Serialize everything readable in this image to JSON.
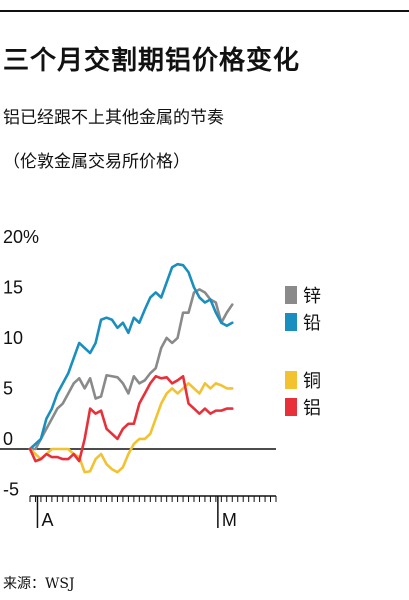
{
  "title": "三个月交割期铝价格变化",
  "subtitle": "铝已经跟不上其他金属的节奏",
  "note": "（伦敦金属交易所价格）",
  "source": "来源：WSJ",
  "chart_data": {
    "type": "line",
    "title": "三个月交割期铝价格变化",
    "xlabel": "",
    "ylabel": "",
    "y_tick_labels": [
      "20%",
      "15",
      "10",
      "5",
      "0",
      "-5"
    ],
    "y_ticks": [
      20,
      15,
      10,
      5,
      0,
      -5
    ],
    "ylim": [
      -6.5,
      21
    ],
    "x_tick_labels": [
      "A",
      "M"
    ],
    "x_tick_positions": [
      1,
      34
    ],
    "x_count": 46,
    "grid": false,
    "legend_position": "right",
    "series": [
      {
        "name": "锌",
        "color": "#8a8a8a",
        "values": [
          0,
          0,
          1,
          2,
          3,
          4,
          4.5,
          5.5,
          6.5,
          7,
          6,
          7,
          5,
          5.2,
          7.3,
          7.2,
          7.1,
          6.5,
          5.5,
          7.2,
          6.5,
          6.8,
          7.5,
          8,
          10,
          11,
          10.5,
          11,
          13.5,
          13.5,
          15.5,
          15.8,
          15.5,
          14.8,
          14.5,
          12.5,
          13.5,
          14.3
        ]
      },
      {
        "name": "铅",
        "color": "#1a8fbf",
        "values": [
          0,
          0.5,
          1,
          3,
          4,
          5.5,
          6.5,
          7.5,
          9,
          10.5,
          10,
          9.5,
          10.5,
          12.8,
          13,
          12.8,
          12,
          12.5,
          11.5,
          13,
          12.5,
          13.8,
          15,
          15.5,
          15,
          16.5,
          18,
          18.3,
          18.2,
          17.5,
          16,
          15,
          14.5,
          14.8,
          13.5,
          12.5,
          12.2,
          12.5
        ]
      },
      {
        "name": "铜",
        "color": "#f2c230",
        "values": [
          0,
          -0.5,
          -1,
          -0.5,
          0,
          0,
          0,
          0,
          -0.5,
          -0.8,
          -2.3,
          -2.2,
          -1,
          -0.5,
          -1.5,
          -2,
          -2.3,
          -1.8,
          -0.5,
          0.5,
          1,
          1,
          1.5,
          3,
          4.5,
          5.5,
          6,
          5.5,
          6,
          6.5,
          6,
          5.5,
          6.5,
          6,
          6.5,
          6.3,
          6,
          6
        ]
      },
      {
        "name": "铝",
        "color": "#e8303a",
        "values": [
          0,
          -1.2,
          -1,
          -0.5,
          -0.8,
          -0.8,
          -1,
          -1,
          -0.5,
          -1.2,
          1,
          4,
          3.5,
          3.8,
          2,
          1.5,
          1,
          2,
          2.5,
          2.5,
          4.5,
          5.5,
          6.5,
          7.2,
          7,
          7.1,
          6.5,
          6.8,
          7.2,
          4.5,
          4,
          3.5,
          4,
          3.5,
          3.8,
          3.8,
          4,
          4
        ]
      }
    ]
  }
}
